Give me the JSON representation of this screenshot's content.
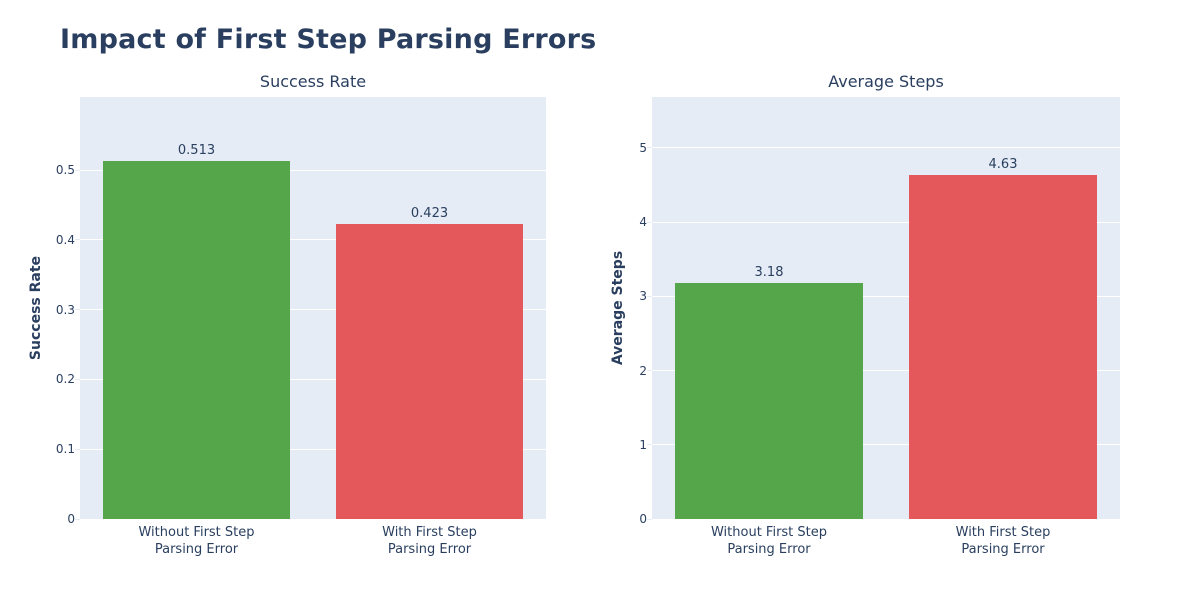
{
  "page": {
    "title": "Impact of First Step Parsing Errors"
  },
  "colors": {
    "page_bg": "#ffffff",
    "plot_bg": "#e5ecf6",
    "grid": "#ffffff",
    "text": "#2a3f5f",
    "green": "#55a54b",
    "red": "#e4575a"
  },
  "chart_data": [
    {
      "type": "bar",
      "title": "Success Rate",
      "xlabel": "",
      "ylabel": "Success Rate",
      "categories": [
        [
          "Without First Step",
          "Parsing Error"
        ],
        [
          "With First Step",
          "Parsing Error"
        ]
      ],
      "values": [
        0.513,
        0.423
      ],
      "value_labels": [
        "0.513",
        "0.423"
      ],
      "bar_colors": [
        "#55a54b",
        "#e4575a"
      ],
      "ylim": [
        0,
        0.6046
      ],
      "yticks": [
        0,
        0.1,
        0.2,
        0.3,
        0.4,
        0.5
      ],
      "ytick_labels": [
        "0",
        "0.1",
        "0.2",
        "0.3",
        "0.4",
        "0.5"
      ],
      "bar_width_frac": 0.8,
      "grid": true,
      "legend": false
    },
    {
      "type": "bar",
      "title": "Average Steps",
      "xlabel": "",
      "ylabel": "Average Steps",
      "categories": [
        [
          "Without First Step",
          "Parsing Error"
        ],
        [
          "With First Step",
          "Parsing Error"
        ]
      ],
      "values": [
        3.18,
        4.63
      ],
      "value_labels": [
        "3.18",
        "4.63"
      ],
      "bar_colors": [
        "#55a54b",
        "#e4575a"
      ],
      "ylim": [
        0,
        5.687
      ],
      "yticks": [
        0,
        1,
        2,
        3,
        4,
        5
      ],
      "ytick_labels": [
        "0",
        "1",
        "2",
        "3",
        "4",
        "5"
      ],
      "bar_width_frac": 0.8,
      "grid": true,
      "legend": false
    }
  ]
}
